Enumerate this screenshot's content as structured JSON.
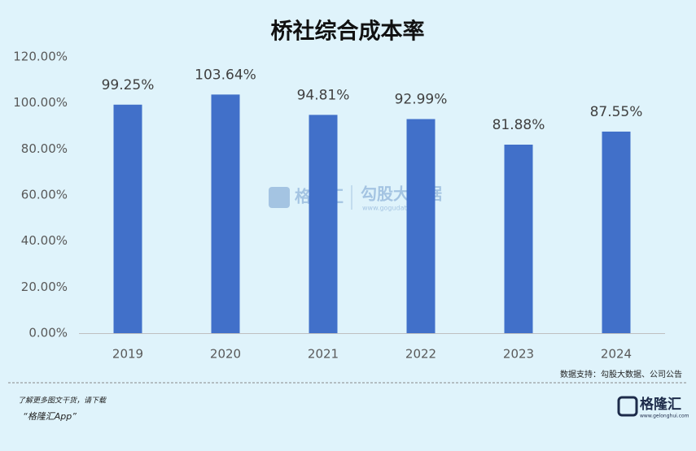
{
  "chart_data": {
    "type": "bar",
    "title": "桥社综合成本率",
    "categories": [
      "2019",
      "2020",
      "2021",
      "2022",
      "2023",
      "2024"
    ],
    "values": [
      99.25,
      103.64,
      94.81,
      92.99,
      81.88,
      87.55
    ],
    "value_labels": [
      "99.25%",
      "103.64%",
      "94.81%",
      "92.99%",
      "81.88%",
      "87.55%"
    ],
    "color": "#4170c9",
    "ylim": [
      0,
      120
    ],
    "yticks": [
      {
        "value": 0,
        "label": "0.00%"
      },
      {
        "value": 20,
        "label": "20.00%"
      },
      {
        "value": 40,
        "label": "40.00%"
      },
      {
        "value": 60,
        "label": "60.00%"
      },
      {
        "value": 80,
        "label": "80.00%"
      },
      {
        "value": 100,
        "label": "100.00%"
      },
      {
        "value": 120,
        "label": "120.00%"
      }
    ],
    "grid": false,
    "source": "数据支持：勾股大数据、公司公告"
  },
  "watermark": {
    "brand": "格隆汇",
    "partner": "勾股大数据",
    "url": "www.gogudata.com"
  },
  "footer": {
    "prompt": "了解更多图文干货，请下载",
    "app": "“格隆汇App”",
    "logo": "格隆汇",
    "logo_url": "www.gelonghui.com"
  }
}
